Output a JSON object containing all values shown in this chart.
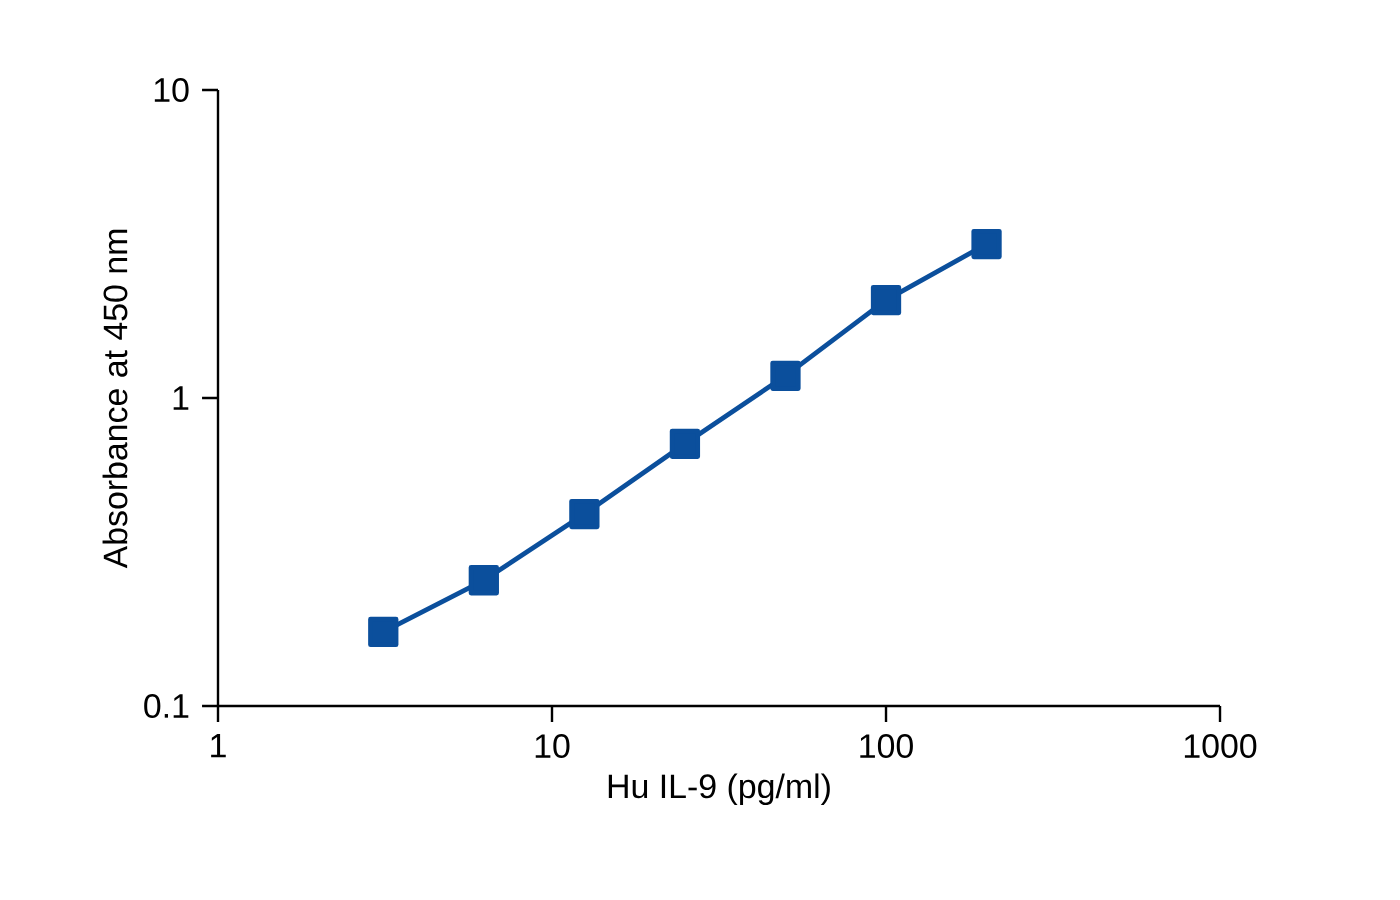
{
  "chart_data": {
    "type": "line",
    "xlabel": "Hu IL-9 (pg/ml)",
    "ylabel": "Absorbance at 450 nm",
    "x": [
      3.125,
      6.25,
      12.5,
      25,
      50,
      100,
      200
    ],
    "series": [
      {
        "color": "#0b4f9c",
        "values": [
          0.174,
          0.256,
          0.42,
          0.71,
          1.18,
          2.08,
          3.16
        ]
      }
    ],
    "log": "xy",
    "xlim": [
      1,
      1000
    ],
    "ylim": [
      0.1,
      10
    ],
    "xticks": [
      1,
      10,
      100,
      1000
    ],
    "yticks": [
      0.1,
      1,
      10
    ],
    "marker": "square",
    "line_style": "solid"
  }
}
